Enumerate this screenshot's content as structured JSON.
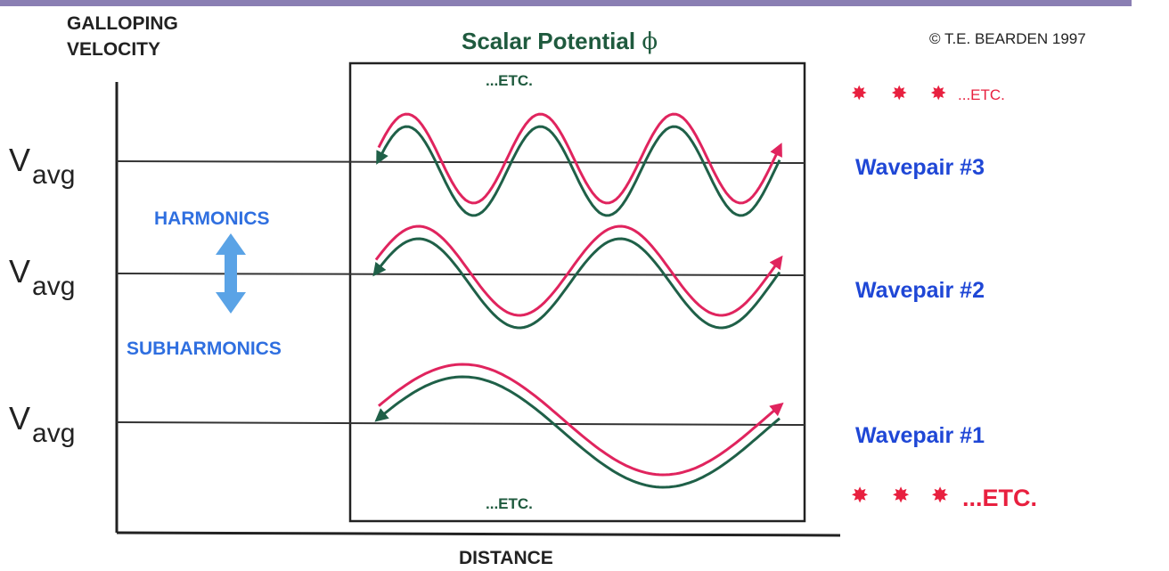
{
  "y_axis_label_line1": "GALLOPING",
  "y_axis_label_line2": "VELOCITY",
  "x_axis_label": "DISTANCE",
  "title": "Scalar Potential",
  "title_symbol": "ϕ",
  "copyright": "©  T.E. BEARDEN  1997",
  "etc_top": "...ETC.",
  "etc_bottom": "...ETC.",
  "v_avg_main": "V",
  "v_avg_sub": "avg",
  "harmonics_label": "HARMONICS",
  "subharmonics_label": "SUBHARMONICS",
  "right_top_etc": "...ETC.",
  "right_bottom_etc": "...ETC.",
  "wavepairs": [
    {
      "label": "Wavepair #3",
      "cycles": 3
    },
    {
      "label": "Wavepair #2",
      "cycles": 2
    },
    {
      "label": "Wavepair #1",
      "cycles": 1
    }
  ],
  "colors": {
    "title": "#1f5a3e",
    "accent_blue": "#1f47d6",
    "harmonics_blue": "#2f6fe0",
    "arrow_blue": "#5aa3e6",
    "wave_red": "#e0245e",
    "wave_green": "#1f6048",
    "star_red": "#e8203f",
    "axis": "#222222",
    "top_rule": "#8a7fb3"
  }
}
